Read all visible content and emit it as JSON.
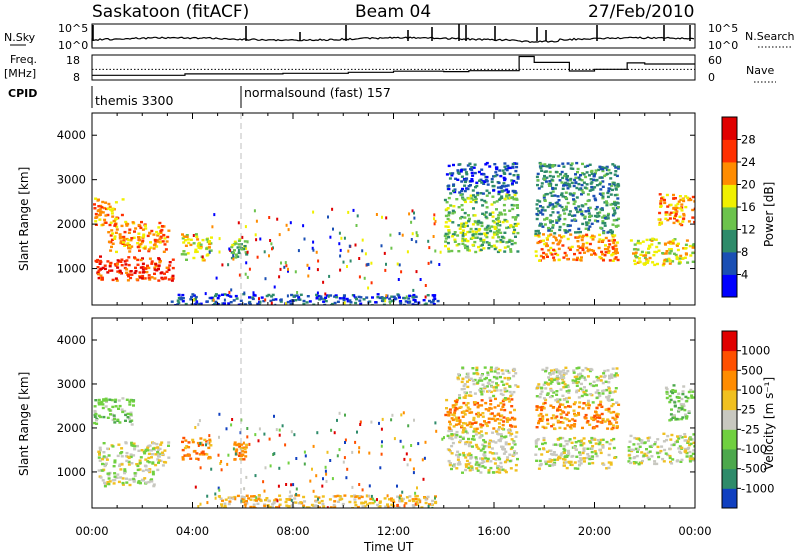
{
  "header": {
    "station": "Saskatoon (fitACF)",
    "beam": "Beam 04",
    "date": "27/Feb/2010"
  },
  "noise_panel": {
    "left_label": "N.Sky",
    "right_label": "N.Search",
    "left_ticks": [
      "10^5",
      "10^0"
    ],
    "right_ticks": [
      "10^5",
      "10^0"
    ]
  },
  "freq_panel": {
    "left_label_1": "Freq.",
    "left_label_2": "[MHz]",
    "right_label": "Nave",
    "left_ticks": [
      "18",
      "8"
    ],
    "right_ticks": [
      "60",
      "0"
    ],
    "freq_steps_mhz": [
      [
        0.0,
        9.6
      ],
      [
        3.7,
        10.2
      ],
      [
        7.6,
        10.5
      ],
      [
        10.2,
        10.9
      ],
      [
        12.0,
        11.4
      ],
      [
        14.0,
        11.2
      ],
      [
        15.0,
        11.6
      ],
      [
        17.0,
        17.8
      ],
      [
        17.6,
        15.2
      ],
      [
        19.0,
        11.5
      ],
      [
        20.0,
        12.2
      ],
      [
        21.3,
        15.0
      ],
      [
        22.0,
        14.5
      ],
      [
        24.0,
        14.5
      ]
    ],
    "freq_range": [
      8,
      18
    ],
    "nave_level": 25
  },
  "cpid": {
    "label": "CPID",
    "segments": [
      {
        "start_hour": 0.0,
        "text": "themis 3300"
      },
      {
        "start_hour": 6.0,
        "text": "normalsound (fast) 157"
      }
    ]
  },
  "chart_data": [
    {
      "type": "heatmap",
      "name": "power",
      "ylabel": "Slant Range [km]",
      "yticks": [
        "1000",
        "2000",
        "3000",
        "4000"
      ],
      "ylim": [
        180,
        4500
      ],
      "x_range_hours": [
        0,
        24
      ],
      "colorbar_label": "Power [dB]",
      "colorbar_ticks": [
        "4",
        "8",
        "12",
        "16",
        "20",
        "24",
        "28"
      ],
      "colors": [
        "#0000ff",
        "#1a4fb4",
        "#2e8b6a",
        "#6cc34c",
        "#f0f000",
        "#ff8c00",
        "#ff3000",
        "#e00000"
      ],
      "regions": [
        {
          "t": [
            0.0,
            1.2
          ],
          "r": [
            2000,
            2600
          ],
          "level": 5
        },
        {
          "t": [
            0.1,
            3.2
          ],
          "r": [
            750,
            1300
          ],
          "level": 6
        },
        {
          "t": [
            0.6,
            3.0
          ],
          "r": [
            1400,
            2100
          ],
          "level": 5
        },
        {
          "t": [
            3.5,
            4.7
          ],
          "r": [
            1200,
            1800
          ],
          "level": 4
        },
        {
          "t": [
            5.5,
            6.1
          ],
          "r": [
            1250,
            1750
          ],
          "level": 3
        },
        {
          "t": [
            14.0,
            16.9
          ],
          "r": [
            1400,
            2700
          ],
          "level": 3
        },
        {
          "t": [
            14.0,
            16.9
          ],
          "r": [
            2700,
            3400
          ],
          "level": 1
        },
        {
          "t": [
            17.6,
            20.9
          ],
          "r": [
            1200,
            1800
          ],
          "level": 5
        },
        {
          "t": [
            17.6,
            20.9
          ],
          "r": [
            1800,
            3400
          ],
          "level": 2
        },
        {
          "t": [
            21.4,
            23.9
          ],
          "r": [
            1100,
            1700
          ],
          "level": 4
        },
        {
          "t": [
            22.5,
            24.0
          ],
          "r": [
            2000,
            2700
          ],
          "level": 5
        },
        {
          "t": [
            3.0,
            13.8
          ],
          "r": [
            200,
            450
          ],
          "level": 1
        }
      ]
    },
    {
      "type": "heatmap",
      "name": "velocity",
      "ylabel": "Slant Range [km]",
      "yticks": [
        "1000",
        "2000",
        "3000",
        "4000"
      ],
      "ylim": [
        180,
        4500
      ],
      "x_range_hours": [
        0,
        24
      ],
      "colorbar_label": "Velocity [m s⁻¹]",
      "colorbar_ticks": [
        "1000",
        "500",
        "100",
        "25",
        "-25",
        "-100",
        "-500",
        "-1000"
      ],
      "colors": [
        "#1040c0",
        "#2e8b6a",
        "#4ca84c",
        "#70d040",
        "#c8c8c0",
        "#f0c020",
        "#ff8c00",
        "#ff5000",
        "#e00000"
      ],
      "regions": [
        {
          "t": [
            0.0,
            1.6
          ],
          "r": [
            2100,
            2700
          ],
          "level": 3
        },
        {
          "t": [
            0.2,
            2.6
          ],
          "r": [
            700,
            1100
          ],
          "level": 4
        },
        {
          "t": [
            0.2,
            3.0
          ],
          "r": [
            1150,
            1700
          ],
          "level": 4
        },
        {
          "t": [
            3.5,
            4.7
          ],
          "r": [
            1300,
            1800
          ],
          "level": 6
        },
        {
          "t": [
            5.6,
            6.1
          ],
          "r": [
            1300,
            1700
          ],
          "level": 6
        },
        {
          "t": [
            14.1,
            16.9
          ],
          "r": [
            1000,
            2000
          ],
          "level": 4
        },
        {
          "t": [
            14.0,
            16.8
          ],
          "r": [
            2000,
            2700
          ],
          "level": 6
        },
        {
          "t": [
            14.5,
            16.9
          ],
          "r": [
            2700,
            3400
          ],
          "level": 4
        },
        {
          "t": [
            17.6,
            20.8
          ],
          "r": [
            1100,
            1800
          ],
          "level": 4
        },
        {
          "t": [
            17.6,
            20.9
          ],
          "r": [
            2000,
            2600
          ],
          "level": 6
        },
        {
          "t": [
            17.6,
            20.9
          ],
          "r": [
            2600,
            3400
          ],
          "level": 4
        },
        {
          "t": [
            21.3,
            24.0
          ],
          "r": [
            1200,
            1900
          ],
          "level": 4
        },
        {
          "t": [
            22.8,
            24.0
          ],
          "r": [
            2200,
            3000
          ],
          "level": 3
        },
        {
          "t": [
            5.0,
            13.8
          ],
          "r": [
            200,
            500
          ],
          "level": 5
        }
      ]
    }
  ],
  "time_axis": {
    "label": "Time UT",
    "ticks": [
      "00:00",
      "04:00",
      "08:00",
      "12:00",
      "16:00",
      "20:00",
      "00:00"
    ]
  }
}
